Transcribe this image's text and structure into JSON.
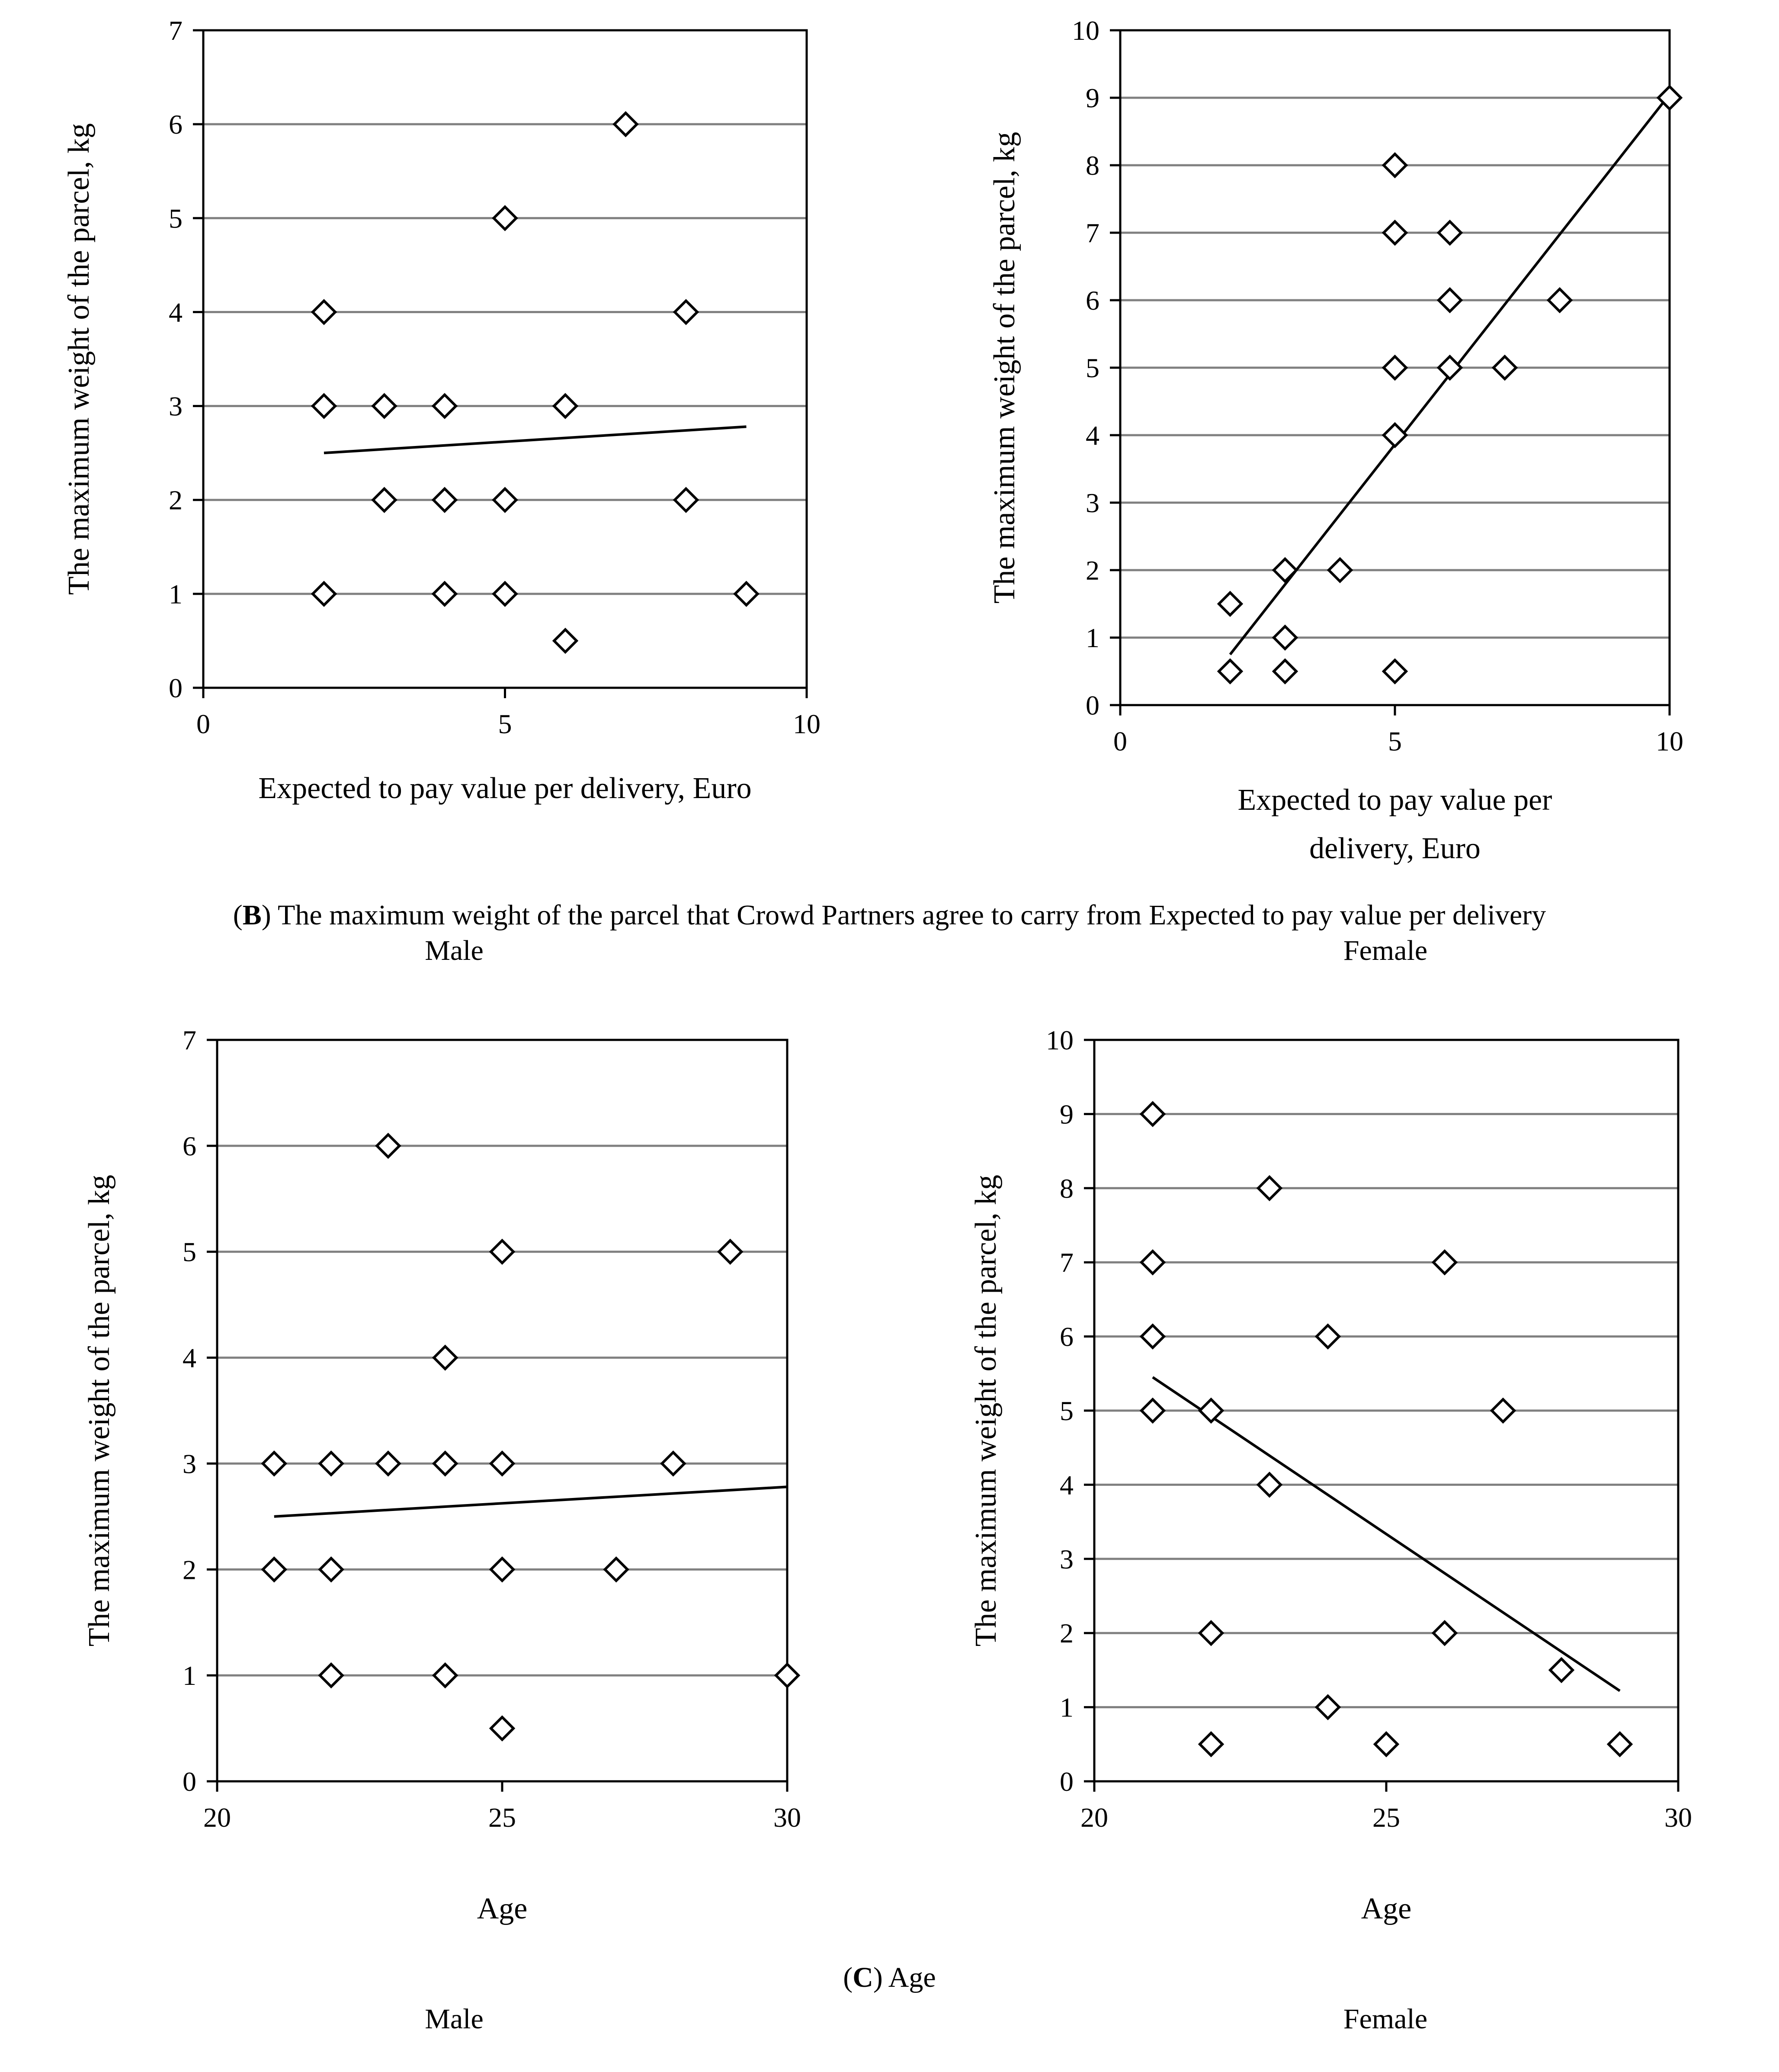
{
  "caption_b": {
    "letter": "B",
    "text": ") The maximum weight of the parcel that Crowd Partners agree to carry from Expected to pay value per delivery"
  },
  "caption_c": {
    "letter": "C",
    "text": ") Age"
  },
  "labels": {
    "male": "Male",
    "female": "Female"
  },
  "colors": {
    "grid": "#808080",
    "axis": "#000000",
    "marker_fill": "#ffffff",
    "line": "#000000"
  },
  "chart_data": [
    {
      "id": "b-male",
      "type": "scatter",
      "title": "",
      "xlabel": "Expected to pay value per delivery, Euro",
      "ylabel": "The maximum weight of the parcel, kg",
      "xlim": [
        0,
        10
      ],
      "ylim": [
        0,
        7
      ],
      "xticks": [
        0,
        5,
        10
      ],
      "yticks": [
        0,
        1,
        2,
        3,
        4,
        5,
        6,
        7
      ],
      "x": [
        2,
        2,
        2,
        3,
        3,
        4,
        4,
        4,
        5,
        5,
        5,
        6,
        6,
        7,
        8,
        8,
        9
      ],
      "y": [
        4,
        3,
        1,
        3,
        2,
        3,
        2,
        1,
        5,
        2,
        1,
        3,
        0.5,
        6,
        4,
        2,
        1
      ],
      "trendline": {
        "x": [
          2,
          9
        ],
        "y": [
          2.5,
          2.78
        ]
      }
    },
    {
      "id": "b-female",
      "type": "scatter",
      "title": "",
      "xlabel": "Expected to pay value per delivery, Euro",
      "ylabel": "The maximum weight of the parcel, kg",
      "xlim": [
        0,
        10
      ],
      "ylim": [
        0,
        10
      ],
      "xticks": [
        0,
        5,
        10
      ],
      "yticks": [
        0,
        1,
        2,
        3,
        4,
        5,
        6,
        7,
        8,
        9,
        10
      ],
      "x": [
        2,
        2,
        3,
        3,
        3,
        4,
        5,
        5,
        5,
        5,
        5,
        6,
        6,
        6,
        7,
        8,
        10
      ],
      "y": [
        1.5,
        0.5,
        2,
        1,
        0.5,
        2,
        8,
        7,
        5,
        4,
        0.5,
        7,
        6,
        5,
        5,
        6,
        9
      ],
      "trendline": {
        "x": [
          2,
          10
        ],
        "y": [
          0.75,
          9.05
        ]
      }
    },
    {
      "id": "c-male",
      "type": "scatter",
      "title": "",
      "xlabel": "Age",
      "ylabel": "The maximum weight of the parcel, kg",
      "xlim": [
        20,
        30
      ],
      "ylim": [
        0,
        7
      ],
      "xticks": [
        20,
        25,
        30
      ],
      "yticks": [
        0,
        1,
        2,
        3,
        4,
        5,
        6,
        7
      ],
      "x": [
        21,
        21,
        22,
        22,
        22,
        23,
        23,
        24,
        24,
        24,
        25,
        25,
        25,
        25,
        27,
        28,
        29,
        30
      ],
      "y": [
        3,
        2,
        3,
        2,
        1,
        6,
        3,
        4,
        3,
        1,
        5,
        3,
        2,
        0.5,
        2,
        3,
        5,
        1
      ],
      "trendline": {
        "x": [
          21,
          30
        ],
        "y": [
          2.5,
          2.78
        ]
      }
    },
    {
      "id": "c-female",
      "type": "scatter",
      "title": "",
      "xlabel": "Age",
      "ylabel": "The maximum weight of the parcel, kg",
      "xlim": [
        20,
        30
      ],
      "ylim": [
        0,
        10
      ],
      "xticks": [
        20,
        25,
        30
      ],
      "yticks": [
        0,
        1,
        2,
        3,
        4,
        5,
        6,
        7,
        8,
        9,
        10
      ],
      "x": [
        21,
        21,
        21,
        21,
        22,
        22,
        22,
        23,
        23,
        24,
        24,
        25,
        26,
        26,
        27,
        28,
        29
      ],
      "y": [
        9,
        7,
        6,
        5,
        5,
        2,
        0.5,
        8,
        4,
        6,
        1,
        0.5,
        7,
        2,
        5,
        1.5,
        0.5
      ],
      "trendline": {
        "x": [
          21,
          29
        ],
        "y": [
          5.45,
          1.22
        ]
      }
    }
  ]
}
